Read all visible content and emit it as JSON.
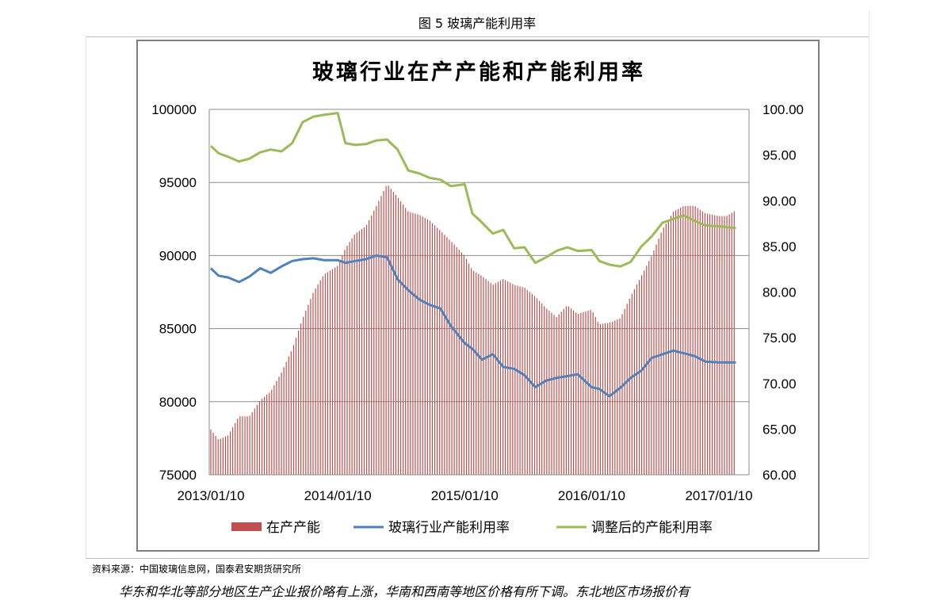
{
  "figure_caption": "图 5  玻璃产能利用率",
  "source_note": "资料来源：中国玻璃信息网，国泰君安期货研究所",
  "trailing_text": "华东和华北等部分地区生产企业报价略有上涨，华南和西南等地区价格有所下调。东北地区市场报价有",
  "chart_data": {
    "type": "bar",
    "title": "玻璃行业在产产能和产能利用率",
    "x_ticks": [
      "2013/01/10",
      "2014/01/10",
      "2015/01/10",
      "2016/01/10",
      "2017/01/10"
    ],
    "y_left": {
      "ticks": [
        "100000",
        "95000",
        "90000",
        "85000",
        "80000",
        "75000"
      ],
      "range": [
        75000,
        100000
      ]
    },
    "y_right": {
      "ticks": [
        "100.00",
        "95.00",
        "90.00",
        "85.00",
        "80.00",
        "75.00",
        "70.00",
        "65.00",
        "60.00"
      ],
      "range": [
        60,
        100
      ]
    },
    "grid": "horizontal",
    "legend_position": "bottom",
    "colors": {
      "bars": "#c0504d",
      "utilization": "#4f81bd",
      "adjusted": "#9bbb59"
    },
    "series": [
      {
        "name": "在产产能",
        "type": "bar",
        "axis": "left",
        "points": [
          [
            "2013/01/10",
            78100
          ],
          [
            "2013/02/01",
            77400
          ],
          [
            "2013/03/01",
            77700
          ],
          [
            "2013/04/01",
            79000
          ],
          [
            "2013/05/01",
            79000
          ],
          [
            "2013/06/01",
            80100
          ],
          [
            "2013/07/01",
            80700
          ],
          [
            "2013/08/01",
            82000
          ],
          [
            "2013/09/01",
            83600
          ],
          [
            "2013/10/01",
            85700
          ],
          [
            "2013/11/01",
            87500
          ],
          [
            "2013/12/01",
            88700
          ],
          [
            "2014/01/10",
            89300
          ],
          [
            "2014/02/01",
            90500
          ],
          [
            "2014/03/01",
            91500
          ],
          [
            "2014/04/01",
            92000
          ],
          [
            "2014/05/01",
            93400
          ],
          [
            "2014/06/01",
            94900
          ],
          [
            "2014/07/01",
            94000
          ],
          [
            "2014/08/01",
            93000
          ],
          [
            "2014/09/01",
            92800
          ],
          [
            "2014/10/01",
            92400
          ],
          [
            "2014/11/01",
            91700
          ],
          [
            "2014/12/01",
            91000
          ],
          [
            "2015/01/10",
            90000
          ],
          [
            "2015/02/01",
            89000
          ],
          [
            "2015/03/01",
            88600
          ],
          [
            "2015/04/01",
            88000
          ],
          [
            "2015/05/01",
            88400
          ],
          [
            "2015/06/01",
            88000
          ],
          [
            "2015/07/01",
            87800
          ],
          [
            "2015/08/01",
            87200
          ],
          [
            "2015/09/01",
            86400
          ],
          [
            "2015/10/01",
            85800
          ],
          [
            "2015/11/01",
            86600
          ],
          [
            "2015/12/01",
            86000
          ],
          [
            "2016/01/10",
            86300
          ],
          [
            "2016/02/01",
            85300
          ],
          [
            "2016/03/01",
            85400
          ],
          [
            "2016/04/01",
            85700
          ],
          [
            "2016/05/01",
            87200
          ],
          [
            "2016/06/01",
            88600
          ],
          [
            "2016/07/01",
            90000
          ],
          [
            "2016/08/01",
            91800
          ],
          [
            "2016/09/01",
            93000
          ],
          [
            "2016/10/01",
            93400
          ],
          [
            "2016/11/01",
            93400
          ],
          [
            "2016/12/01",
            92900
          ],
          [
            "2017/01/10",
            92700
          ],
          [
            "2017/02/01",
            92700
          ],
          [
            "2017/02/28",
            93100
          ]
        ]
      },
      {
        "name": "玻璃行业产能利用率",
        "type": "line",
        "axis": "right",
        "points": [
          [
            "2013/01/10",
            82.6
          ],
          [
            "2013/02/01",
            81.8
          ],
          [
            "2013/03/01",
            81.6
          ],
          [
            "2013/04/01",
            81.1
          ],
          [
            "2013/05/01",
            81.7
          ],
          [
            "2013/06/01",
            82.6
          ],
          [
            "2013/07/01",
            82.1
          ],
          [
            "2013/08/01",
            82.8
          ],
          [
            "2013/09/01",
            83.4
          ],
          [
            "2013/10/01",
            83.6
          ],
          [
            "2013/11/01",
            83.7
          ],
          [
            "2013/12/01",
            83.5
          ],
          [
            "2014/01/10",
            83.5
          ],
          [
            "2014/02/01",
            83.2
          ],
          [
            "2014/03/01",
            83.4
          ],
          [
            "2014/04/01",
            83.6
          ],
          [
            "2014/05/01",
            84.0
          ],
          [
            "2014/06/01",
            83.8
          ],
          [
            "2014/07/01",
            81.4
          ],
          [
            "2014/08/01",
            80.2
          ],
          [
            "2014/09/01",
            79.2
          ],
          [
            "2014/10/01",
            78.6
          ],
          [
            "2014/11/01",
            78.2
          ],
          [
            "2014/12/01",
            76.3
          ],
          [
            "2015/01/10",
            74.4
          ],
          [
            "2015/02/01",
            73.8
          ],
          [
            "2015/03/01",
            72.6
          ],
          [
            "2015/04/01",
            73.2
          ],
          [
            "2015/05/01",
            71.8
          ],
          [
            "2015/06/01",
            71.6
          ],
          [
            "2015/07/01",
            70.9
          ],
          [
            "2015/08/01",
            69.6
          ],
          [
            "2015/09/01",
            70.3
          ],
          [
            "2015/10/01",
            70.6
          ],
          [
            "2015/11/01",
            70.8
          ],
          [
            "2015/12/01",
            71.0
          ],
          [
            "2016/01/10",
            69.6
          ],
          [
            "2016/02/01",
            69.4
          ],
          [
            "2016/03/01",
            68.6
          ],
          [
            "2016/04/01",
            69.5
          ],
          [
            "2016/05/01",
            70.6
          ],
          [
            "2016/06/01",
            71.4
          ],
          [
            "2016/07/01",
            72.8
          ],
          [
            "2016/08/01",
            73.2
          ],
          [
            "2016/09/01",
            73.6
          ],
          [
            "2016/10/01",
            73.3
          ],
          [
            "2016/11/01",
            73.0
          ],
          [
            "2016/12/01",
            72.4
          ],
          [
            "2017/01/10",
            72.3
          ],
          [
            "2017/02/28",
            72.3
          ]
        ]
      },
      {
        "name": "调整后的产能利用率",
        "type": "line",
        "axis": "right",
        "points": [
          [
            "2013/01/10",
            96.0
          ],
          [
            "2013/02/01",
            95.2
          ],
          [
            "2013/03/01",
            94.8
          ],
          [
            "2013/04/01",
            94.3
          ],
          [
            "2013/05/01",
            94.6
          ],
          [
            "2013/06/01",
            95.3
          ],
          [
            "2013/07/01",
            95.6
          ],
          [
            "2013/08/01",
            95.4
          ],
          [
            "2013/09/01",
            96.3
          ],
          [
            "2013/10/01",
            98.6
          ],
          [
            "2013/11/01",
            99.2
          ],
          [
            "2013/12/01",
            99.4
          ],
          [
            "2014/01/10",
            99.6
          ],
          [
            "2014/02/01",
            96.3
          ],
          [
            "2014/03/01",
            96.1
          ],
          [
            "2014/04/01",
            96.2
          ],
          [
            "2014/05/01",
            96.6
          ],
          [
            "2014/06/01",
            96.7
          ],
          [
            "2014/07/01",
            95.6
          ],
          [
            "2014/08/01",
            93.3
          ],
          [
            "2014/09/01",
            93.0
          ],
          [
            "2014/10/01",
            92.5
          ],
          [
            "2014/11/01",
            92.3
          ],
          [
            "2014/12/01",
            91.6
          ],
          [
            "2015/01/10",
            91.8
          ],
          [
            "2015/02/01",
            88.6
          ],
          [
            "2015/03/01",
            87.6
          ],
          [
            "2015/04/01",
            86.4
          ],
          [
            "2015/05/01",
            86.8
          ],
          [
            "2015/06/01",
            84.8
          ],
          [
            "2015/07/01",
            84.9
          ],
          [
            "2015/08/01",
            83.2
          ],
          [
            "2015/09/01",
            83.8
          ],
          [
            "2015/10/01",
            84.5
          ],
          [
            "2015/11/01",
            84.9
          ],
          [
            "2015/12/01",
            84.5
          ],
          [
            "2016/01/10",
            84.6
          ],
          [
            "2016/02/01",
            83.4
          ],
          [
            "2016/03/01",
            83.0
          ],
          [
            "2016/04/01",
            82.8
          ],
          [
            "2016/05/01",
            83.3
          ],
          [
            "2016/06/01",
            85.0
          ],
          [
            "2016/07/01",
            86.1
          ],
          [
            "2016/08/01",
            87.6
          ],
          [
            "2016/09/01",
            88.0
          ],
          [
            "2016/10/01",
            88.4
          ],
          [
            "2016/11/01",
            87.8
          ],
          [
            "2016/12/01",
            87.3
          ],
          [
            "2017/01/10",
            87.2
          ],
          [
            "2017/02/28",
            87.0
          ]
        ]
      }
    ]
  }
}
